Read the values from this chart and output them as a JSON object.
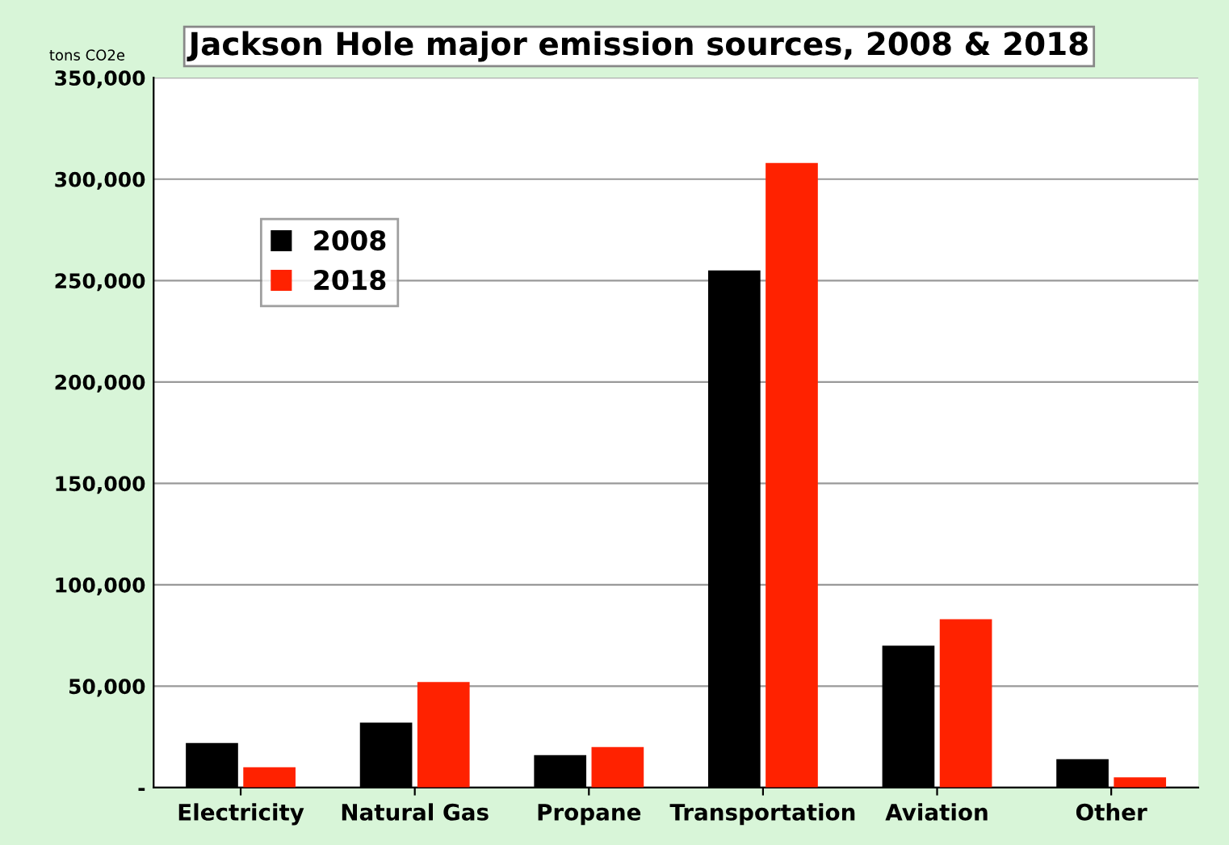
{
  "chart_data": {
    "type": "bar",
    "title": "Jackson Hole major emission sources, 2008 & 2018",
    "ylabel": "tons CO2e",
    "categories": [
      "Electricity",
      "Natural Gas",
      "Propane",
      "Transportation",
      "Aviation",
      "Other"
    ],
    "series": [
      {
        "name": "2008",
        "color": "#000000",
        "values": [
          22000,
          32000,
          16000,
          255000,
          70000,
          14000
        ]
      },
      {
        "name": "2018",
        "color": "#ff2200",
        "values": [
          10000,
          52000,
          20000,
          308000,
          83000,
          5000
        ]
      }
    ],
    "ylim": [
      0,
      350000
    ],
    "yticks": [
      {
        "value": 0,
        "label": "-"
      },
      {
        "value": 50000,
        "label": "50,000"
      },
      {
        "value": 100000,
        "label": "100,000"
      },
      {
        "value": 150000,
        "label": "150,000"
      },
      {
        "value": 200000,
        "label": "200,000"
      },
      {
        "value": 250000,
        "label": "250,000"
      },
      {
        "value": 300000,
        "label": "300,000"
      },
      {
        "value": 350000,
        "label": "350,000"
      }
    ],
    "grid": "y",
    "legend": "top left"
  }
}
